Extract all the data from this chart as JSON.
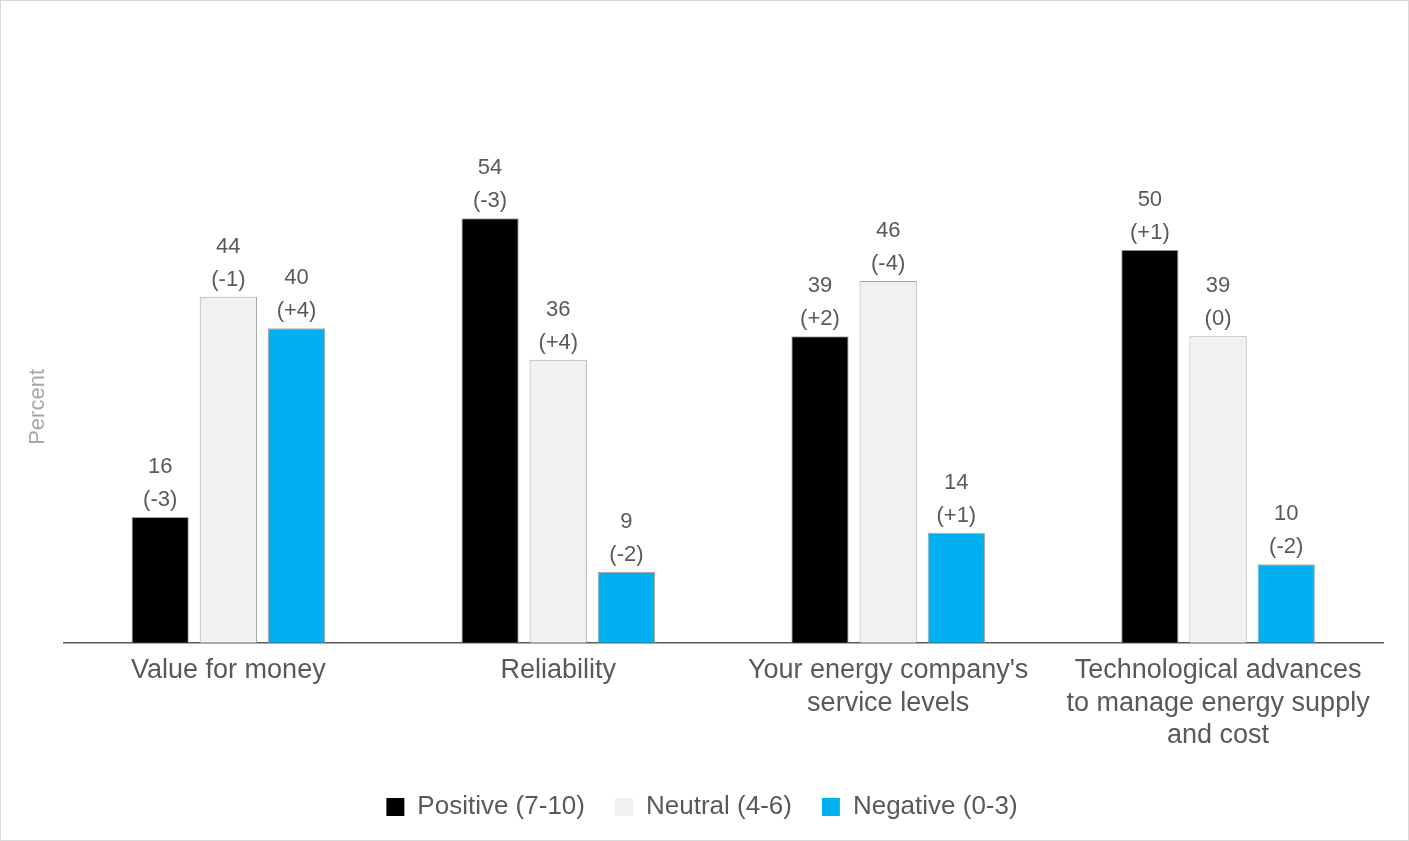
{
  "chart_data": {
    "type": "bar",
    "ylabel": "Percent",
    "categories": [
      "Value for money",
      "Reliability",
      "Your energy company's service levels",
      "Technological advances to manage energy supply and cost"
    ],
    "series": [
      {
        "name": "Positive (7-10)",
        "color": "#000000",
        "values": [
          16,
          54,
          39,
          50
        ],
        "value_labels": [
          "16\n(-3)",
          "54\n(-3)",
          "39\n(+2)",
          "50\n(+1)"
        ]
      },
      {
        "name": "Neutral (4-6)",
        "color": "#f2f0f0",
        "values": [
          44,
          36,
          46,
          39
        ],
        "value_labels": [
          "44\n(-1)",
          "36\n(+4)",
          "46\n(-4)",
          "39\n(0)"
        ]
      },
      {
        "name": "Negative (0-3)",
        "color": "#00b0f0",
        "values": [
          40,
          9,
          14,
          10
        ],
        "value_labels": [
          "40\n(+4)",
          "9\n(-2)",
          "14\n(+1)",
          "10\n(-2)"
        ]
      }
    ],
    "grid": false,
    "legend": "bottom"
  }
}
